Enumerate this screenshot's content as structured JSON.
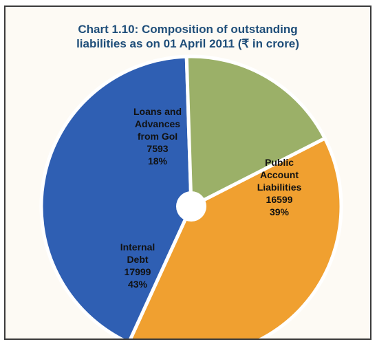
{
  "chart_data": {
    "type": "pie",
    "title_line1": "Chart 1.10: Composition of outstanding",
    "title_line2": "liabilities as on 01 April 2011 (₹ in crore)",
    "slices": [
      {
        "label_lines": [
          "Public",
          "Account",
          "Liabilities"
        ],
        "value": 16599,
        "value_text": "16599",
        "percent": 39,
        "percent_text": "39%",
        "color": "#f0a030"
      },
      {
        "label_lines": [
          "Internal",
          "Debt"
        ],
        "value": 17999,
        "value_text": "17999",
        "percent": 43,
        "percent_text": "43%",
        "color": "#2f5fb3"
      },
      {
        "label_lines": [
          "Loans and",
          "Advances",
          "from GoI"
        ],
        "value": 7593,
        "value_text": "7593",
        "percent": 18,
        "percent_text": "18%",
        "color": "#9bb068"
      }
    ]
  }
}
